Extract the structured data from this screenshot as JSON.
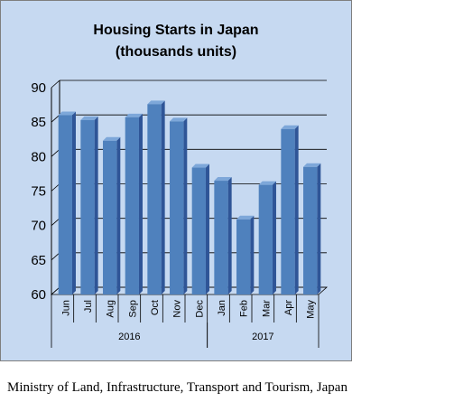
{
  "chart_data": {
    "type": "bar",
    "title_lines": [
      "Housing Starts in Japan",
      "(thousands units)"
    ],
    "categories": [
      "Jun",
      "Jul",
      "Aug",
      "Sep",
      "Oct",
      "Nov",
      "Dec",
      "Jan",
      "Feb",
      "Mar",
      "Apr",
      "May"
    ],
    "values": [
      86.0,
      85.3,
      82.3,
      85.7,
      87.6,
      85.1,
      78.4,
      76.5,
      70.9,
      75.9,
      84.0,
      78.5
    ],
    "groups": [
      {
        "label": "2016",
        "count": 7
      },
      {
        "label": "2017",
        "count": 5
      }
    ],
    "ylim": [
      60,
      90
    ],
    "yticks": [
      60,
      65,
      70,
      75,
      80,
      85,
      90
    ],
    "grid": true,
    "colors": {
      "background": "#c6d9f1",
      "bar_front": "#4f81bd",
      "bar_side": "#2f5597",
      "bar_top": "#7da7d9",
      "grid": "#000000"
    }
  },
  "source_note": "Ministry of Land, Infrastructure, Transport and Tourism, Japan"
}
